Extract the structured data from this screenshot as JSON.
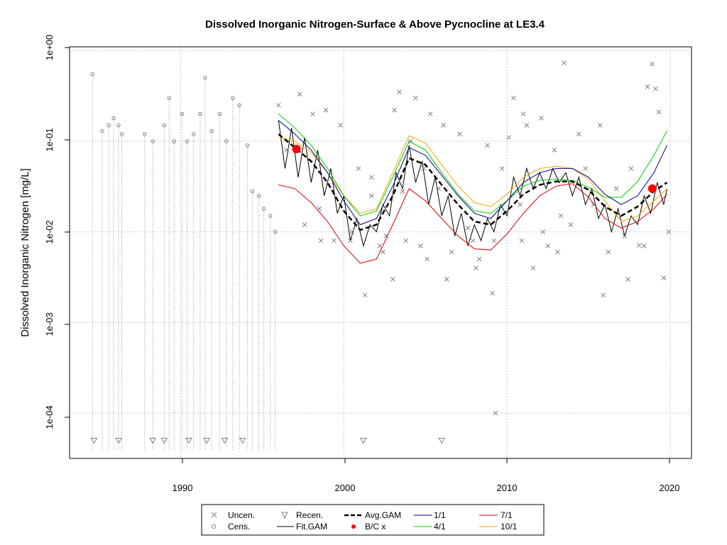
{
  "chart_data": {
    "type": "scatter",
    "title": "Dissolved Inorganic Nitrogen-Surface & Above Pycnocline at LE3.4",
    "xlabel": "",
    "ylabel": "Dissolved Inorganic Nitrogen [mg/L]",
    "x_ticks": [
      "1990",
      "2000",
      "2010",
      "2020"
    ],
    "y_ticks": [
      "1e-04",
      "1e-03",
      "1e-02",
      "1e-01",
      "1e+00"
    ],
    "y_scale": "log10",
    "xlim": [
      1983.2,
      2021.3
    ],
    "ylim": [
      3.16e-05,
      1.1
    ],
    "grid": true,
    "legend_position": "bottom",
    "legend": [
      {
        "label": "Uncen.",
        "marker": "x",
        "color": "#808080"
      },
      {
        "label": "Recen.",
        "marker": "triangle-down",
        "color": "#808080"
      },
      {
        "label": "Avg.GAM",
        "line": "dashed",
        "color": "#000000"
      },
      {
        "label": "1/1",
        "line": "solid",
        "color": "#00008B"
      },
      {
        "label": "7/1",
        "line": "solid",
        "color": "#DD0000"
      },
      {
        "label": "Cens.",
        "marker": "circle",
        "color": "#808080"
      },
      {
        "label": "Fit.GAM",
        "line": "solid",
        "color": "#000000"
      },
      {
        "label": "B/C x",
        "marker": "dot",
        "color": "#FF0000"
      },
      {
        "label": "4/1",
        "line": "solid",
        "color": "#00CC00"
      },
      {
        "label": "10/1",
        "line": "solid",
        "color": "#FFA500"
      }
    ],
    "series": [
      {
        "name": "Avg.GAM",
        "color": "#000000",
        "x": [
          1996.0,
          1997.0,
          1998.0,
          1999.0,
          2000.0,
          2001.0,
          2002.0,
          2003.0,
          2004.0,
          2005.0,
          2006.0,
          2007.0,
          2008.0,
          2009.0,
          2010.0,
          2011.0,
          2012.0,
          2013.0,
          2014.0,
          2015.0,
          2016.0,
          2017.0,
          2018.0,
          2019.0,
          2019.8
        ],
        "y": [
          0.12,
          0.085,
          0.06,
          0.035,
          0.017,
          0.0105,
          0.012,
          0.025,
          0.065,
          0.055,
          0.033,
          0.02,
          0.013,
          0.012,
          0.017,
          0.026,
          0.033,
          0.036,
          0.036,
          0.029,
          0.019,
          0.015,
          0.019,
          0.028,
          0.035
        ]
      },
      {
        "name": "1/1",
        "color": "#00008B",
        "x": [
          1996.0,
          1997.0,
          1998.0,
          1999.0,
          2000.0,
          2001.0,
          2002.0,
          2003.0,
          2004.0,
          2005.0,
          2006.0,
          2007.0,
          2008.0,
          2009.0,
          2010.0,
          2011.0,
          2012.0,
          2013.0,
          2014.0,
          2015.0,
          2016.0,
          2017.0,
          2018.0,
          2019.0,
          2019.8
        ],
        "y": [
          0.17,
          0.12,
          0.08,
          0.045,
          0.022,
          0.012,
          0.014,
          0.032,
          0.085,
          0.07,
          0.042,
          0.025,
          0.016,
          0.014,
          0.022,
          0.035,
          0.045,
          0.05,
          0.05,
          0.04,
          0.026,
          0.02,
          0.025,
          0.045,
          0.09
        ]
      },
      {
        "name": "7/1",
        "color": "#DD0000",
        "x": [
          1996.0,
          1997.0,
          1998.0,
          1999.0,
          2000.0,
          2001.0,
          2002.0,
          2003.0,
          2004.0,
          2005.0,
          2006.0,
          2007.0,
          2008.0,
          2009.0,
          2010.0,
          2011.0,
          2012.0,
          2013.0,
          2014.0,
          2015.0,
          2016.0,
          2017.0,
          2018.0,
          2019.0,
          2019.8
        ],
        "y": [
          0.033,
          0.03,
          0.021,
          0.013,
          0.007,
          0.0045,
          0.005,
          0.012,
          0.03,
          0.022,
          0.014,
          0.009,
          0.0065,
          0.0063,
          0.0095,
          0.016,
          0.025,
          0.032,
          0.034,
          0.024,
          0.014,
          0.011,
          0.013,
          0.018,
          0.026
        ]
      },
      {
        "name": "4/1",
        "color": "#00CC00",
        "x": [
          1996.0,
          1997.0,
          1998.0,
          1999.0,
          2000.0,
          2001.0,
          2002.0,
          2003.0,
          2004.0,
          2005.0,
          2006.0,
          2007.0,
          2008.0,
          2009.0,
          2010.0,
          2011.0,
          2012.0,
          2013.0,
          2014.0,
          2015.0,
          2016.0,
          2017.0,
          2018.0,
          2019.0,
          2019.8
        ],
        "y": [
          0.2,
          0.14,
          0.09,
          0.05,
          0.025,
          0.015,
          0.017,
          0.04,
          0.1,
          0.08,
          0.045,
          0.026,
          0.017,
          0.016,
          0.022,
          0.032,
          0.037,
          0.038,
          0.037,
          0.031,
          0.024,
          0.024,
          0.036,
          0.07,
          0.13
        ]
      },
      {
        "name": "10/1",
        "color": "#FFA500",
        "x": [
          1996.0,
          1997.0,
          1998.0,
          1999.0,
          2000.0,
          2001.0,
          2002.0,
          2003.0,
          2004.0,
          2005.0,
          2006.0,
          2007.0,
          2008.0,
          2009.0,
          2010.0,
          2011.0,
          2012.0,
          2013.0,
          2014.0,
          2015.0,
          2016.0,
          2017.0,
          2018.0,
          2019.0,
          2019.8
        ],
        "y": [
          0.11,
          0.1,
          0.075,
          0.045,
          0.025,
          0.016,
          0.018,
          0.045,
          0.115,
          0.095,
          0.055,
          0.032,
          0.021,
          0.019,
          0.026,
          0.04,
          0.05,
          0.053,
          0.05,
          0.038,
          0.022,
          0.013,
          0.015,
          0.022,
          0.03
        ]
      },
      {
        "name": "Fit.GAM",
        "color": "#000000",
        "x": [
          1996.0,
          1996.4,
          1996.8,
          1997.2,
          1997.6,
          1998.0,
          1998.4,
          1998.8,
          1999.2,
          1999.6,
          2000.0,
          2000.4,
          2000.8,
          2001.2,
          2001.6,
          2002.0,
          2002.4,
          2002.8,
          2003.2,
          2003.6,
          2004.0,
          2004.4,
          2004.8,
          2005.2,
          2005.6,
          2006.0,
          2006.4,
          2006.8,
          2007.2,
          2007.6,
          2008.0,
          2008.4,
          2008.8,
          2009.2,
          2009.6,
          2010.0,
          2010.4,
          2010.8,
          2011.2,
          2011.6,
          2012.0,
          2012.4,
          2012.8,
          2013.2,
          2013.6,
          2014.0,
          2014.4,
          2014.8,
          2015.2,
          2015.6,
          2016.0,
          2016.4,
          2016.8,
          2017.2,
          2017.6,
          2018.0,
          2018.4,
          2018.8,
          2019.2,
          2019.6,
          2019.8
        ],
        "y": [
          0.17,
          0.05,
          0.14,
          0.04,
          0.11,
          0.035,
          0.08,
          0.025,
          0.05,
          0.016,
          0.025,
          0.008,
          0.014,
          0.007,
          0.012,
          0.01,
          0.02,
          0.015,
          0.045,
          0.03,
          0.09,
          0.035,
          0.06,
          0.02,
          0.04,
          0.015,
          0.025,
          0.009,
          0.016,
          0.007,
          0.012,
          0.008,
          0.014,
          0.01,
          0.02,
          0.015,
          0.04,
          0.025,
          0.05,
          0.03,
          0.045,
          0.03,
          0.05,
          0.035,
          0.045,
          0.025,
          0.04,
          0.02,
          0.03,
          0.014,
          0.02,
          0.01,
          0.018,
          0.009,
          0.015,
          0.012,
          0.025,
          0.016,
          0.035,
          0.02,
          0.03
        ]
      }
    ],
    "points": {
      "uncensored": {
        "x": [
          1996.0,
          1996.5,
          1997.3,
          1997.6,
          1998.1,
          1998.5,
          1998.9,
          1999.4,
          1999.8,
          2000.5,
          2000.9,
          2001.3,
          2001.7,
          2002.2,
          2002.6,
          2003.1,
          2003.4,
          2003.8,
          2004.1,
          2004.4,
          2004.9,
          2005.3,
          2005.8,
          2006.1,
          2006.6,
          2007.1,
          2007.6,
          2007.9,
          2008.3,
          2008.8,
          2009.1,
          2009.3,
          2009.7,
          2010.1,
          2010.4,
          2010.8,
          2011.2,
          2011.6,
          2012.1,
          2012.5,
          2012.9,
          2013.3,
          2013.5,
          2013.9,
          2014.4,
          2014.8,
          2015.3,
          2015.7,
          2016.2,
          2016.7,
          2017.2,
          2017.6,
          2018.1,
          2018.6,
          2018.9,
          2019.1,
          2019.3,
          2019.6,
          2019.9,
          2005.1,
          2003.6,
          1998.6,
          2000.4,
          2011.0,
          2006.3,
          2008.1,
          2009.2,
          2001.7,
          2004.7,
          2015.9,
          2017.4,
          2012.2,
          2010.9,
          2003.0,
          2013.1,
          2018.4,
          2002.4
        ],
        "y": [
          0.25,
          0.08,
          0.33,
          0.012,
          0.2,
          0.018,
          0.22,
          0.008,
          0.15,
          0.01,
          0.05,
          0.002,
          0.025,
          0.007,
          0.009,
          0.22,
          0.35,
          0.008,
          0.1,
          0.3,
          0.05,
          0.2,
          0.03,
          0.15,
          0.006,
          0.12,
          0.011,
          0.008,
          0.005,
          0.09,
          0.0021,
          0.0001,
          0.05,
          0.11,
          0.3,
          0.02,
          0.15,
          0.004,
          0.18,
          0.007,
          0.08,
          0.015,
          0.73,
          0.012,
          0.12,
          0.05,
          0.02,
          0.15,
          0.006,
          0.03,
          0.009,
          0.05,
          0.0071,
          0.4,
          0.71,
          0.38,
          0.21,
          0.0031,
          0.01,
          0.005,
          0.028,
          0.008,
          0.008,
          0.2,
          0.003,
          0.004,
          0.008,
          0.04,
          0.007,
          0.002,
          0.003,
          0.01,
          0.008,
          0.003,
          0.006,
          0.007,
          0.006
        ]
      },
      "censored": {
        "x": [
          1984.6,
          1985.2,
          1985.6,
          1985.9,
          1986.2,
          1986.4,
          1987.8,
          1988.3,
          1989.0,
          1989.3,
          1989.6,
          1990.1,
          1990.4,
          1990.8,
          1991.2,
          1991.5,
          1991.9,
          1992.4,
          1992.8,
          1993.2,
          1993.6,
          1994.1,
          1994.4,
          1994.8,
          1995.1,
          1995.5,
          1995.8
        ],
        "y": [
          0.55,
          0.13,
          0.15,
          0.18,
          0.15,
          0.12,
          0.12,
          0.1,
          0.15,
          0.3,
          0.1,
          0.2,
          0.1,
          0.12,
          0.2,
          0.5,
          0.13,
          0.2,
          0.1,
          0.3,
          0.25,
          0.09,
          0.028,
          0.025,
          0.018,
          0.015,
          0.01
        ]
      },
      "recensored": {
        "x": [
          1984.7,
          1986.2,
          1988.3,
          1989.0,
          1990.5,
          1991.6,
          1992.7,
          1993.8,
          2001.2,
          2006.0
        ],
        "y": [
          5e-05,
          5e-05,
          5e-05,
          5e-05,
          5e-05,
          5e-05,
          5e-05,
          5e-05,
          5e-05,
          5e-05
        ]
      },
      "bc": {
        "x": [
          1997.1,
          2018.9
        ],
        "y": [
          0.082,
          0.03
        ]
      }
    }
  }
}
